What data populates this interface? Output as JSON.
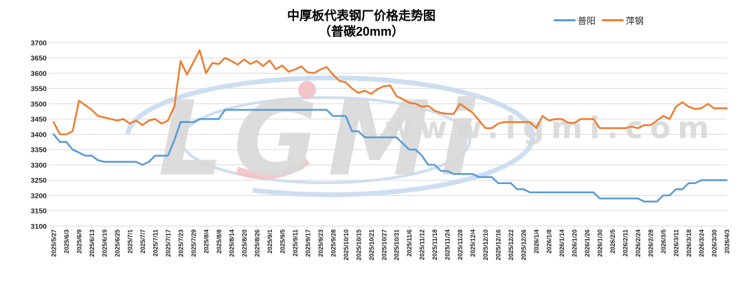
{
  "chart_data": {
    "type": "line",
    "title": "中厚板代表钢厂价格走势图",
    "subtitle": "（普碳20mm）",
    "xlabel": "",
    "ylabel": "",
    "ylim": [
      3100,
      3700
    ],
    "ytick_step": 50,
    "grid": true,
    "legend_position": "top-right",
    "points_per_category": 2,
    "watermark": {
      "logo": "LGMi",
      "url": "www.lgmi.com"
    },
    "colors": {
      "gridline": "#D9D9D9",
      "axis_text": "#262626",
      "watermark_gray": "#D9D9D9",
      "watermark_blue": "#CBDCF0",
      "watermark_pink": "#F2BFC3"
    },
    "categories": [
      "2025/5/27",
      "2025/6/3",
      "2025/6/9",
      "2025/6/13",
      "2025/6/19",
      "2025/6/25",
      "2025/7/1",
      "2025/7/7",
      "2025/7/11",
      "2025/7/17",
      "2025/7/23",
      "2025/7/29",
      "2025/8/4",
      "2025/8/8",
      "2025/8/14",
      "2025/8/20",
      "2025/8/26",
      "2025/9/1",
      "2025/9/5",
      "2025/9/11",
      "2025/9/17",
      "2025/9/23",
      "2025/9/28",
      "2025/10/10",
      "2025/10/15",
      "2025/10/21",
      "2025/10/27",
      "2025/10/31",
      "2025/11/6",
      "2025/11/12",
      "2025/11/18",
      "2025/11/24",
      "2025/11/28",
      "2025/12/4",
      "2025/12/10",
      "2025/12/16",
      "2025/12/22",
      "2025/12/26",
      "2026/1/4",
      "2026/1/8",
      "2026/1/14",
      "2026/1/20",
      "2026/1/26",
      "2026/1/30",
      "2026/2/5",
      "2026/2/11",
      "2026/2/24",
      "2026/2/28",
      "2026/3/5",
      "2026/3/11",
      "2026/3/18",
      "2026/3/24",
      "2026/3/30",
      "2026/4/3"
    ],
    "series": [
      {
        "name": "普阳",
        "color": "#5B9BD5",
        "values": [
          3400,
          3375,
          3375,
          3350,
          3340,
          3330,
          3330,
          3315,
          3310,
          3310,
          3310,
          3310,
          3310,
          3310,
          3300,
          3310,
          3330,
          3330,
          3330,
          3380,
          3440,
          3440,
          3440,
          3450,
          3450,
          3450,
          3450,
          3480,
          3480,
          3480,
          3480,
          3480,
          3480,
          3480,
          3480,
          3480,
          3480,
          3480,
          3480,
          3480,
          3480,
          3480,
          3480,
          3480,
          3460,
          3460,
          3460,
          3410,
          3410,
          3390,
          3390,
          3390,
          3390,
          3390,
          3390,
          3370,
          3350,
          3350,
          3330,
          3300,
          3300,
          3280,
          3280,
          3270,
          3270,
          3270,
          3270,
          3260,
          3260,
          3260,
          3240,
          3240,
          3240,
          3220,
          3220,
          3210,
          3210,
          3210,
          3210,
          3210,
          3210,
          3210,
          3210,
          3210,
          3210,
          3210,
          3190,
          3190,
          3190,
          3190,
          3190,
          3190,
          3190,
          3180,
          3180,
          3180,
          3200,
          3200,
          3220,
          3220,
          3240,
          3240,
          3250,
          3250,
          3250,
          3250,
          3250
        ]
      },
      {
        "name": "萍钢",
        "color": "#ED7D31",
        "values": [
          3440,
          3400,
          3400,
          3410,
          3510,
          3495,
          3480,
          3460,
          3455,
          3450,
          3445,
          3450,
          3435,
          3445,
          3430,
          3445,
          3450,
          3435,
          3445,
          3490,
          3640,
          3595,
          3635,
          3675,
          3600,
          3633,
          3630,
          3650,
          3640,
          3628,
          3645,
          3630,
          3640,
          3623,
          3642,
          3613,
          3625,
          3605,
          3612,
          3622,
          3603,
          3600,
          3612,
          3620,
          3595,
          3575,
          3570,
          3550,
          3535,
          3543,
          3532,
          3548,
          3557,
          3560,
          3525,
          3515,
          3503,
          3500,
          3490,
          3493,
          3477,
          3470,
          3467,
          3467,
          3500,
          3485,
          3470,
          3445,
          3420,
          3420,
          3435,
          3440,
          3440,
          3440,
          3440,
          3440,
          3420,
          3460,
          3445,
          3450,
          3450,
          3438,
          3437,
          3450,
          3450,
          3450,
          3420,
          3420,
          3420,
          3420,
          3420,
          3425,
          3420,
          3430,
          3430,
          3445,
          3460,
          3450,
          3490,
          3505,
          3490,
          3483,
          3485,
          3500,
          3485,
          3485,
          3485
        ]
      }
    ]
  }
}
